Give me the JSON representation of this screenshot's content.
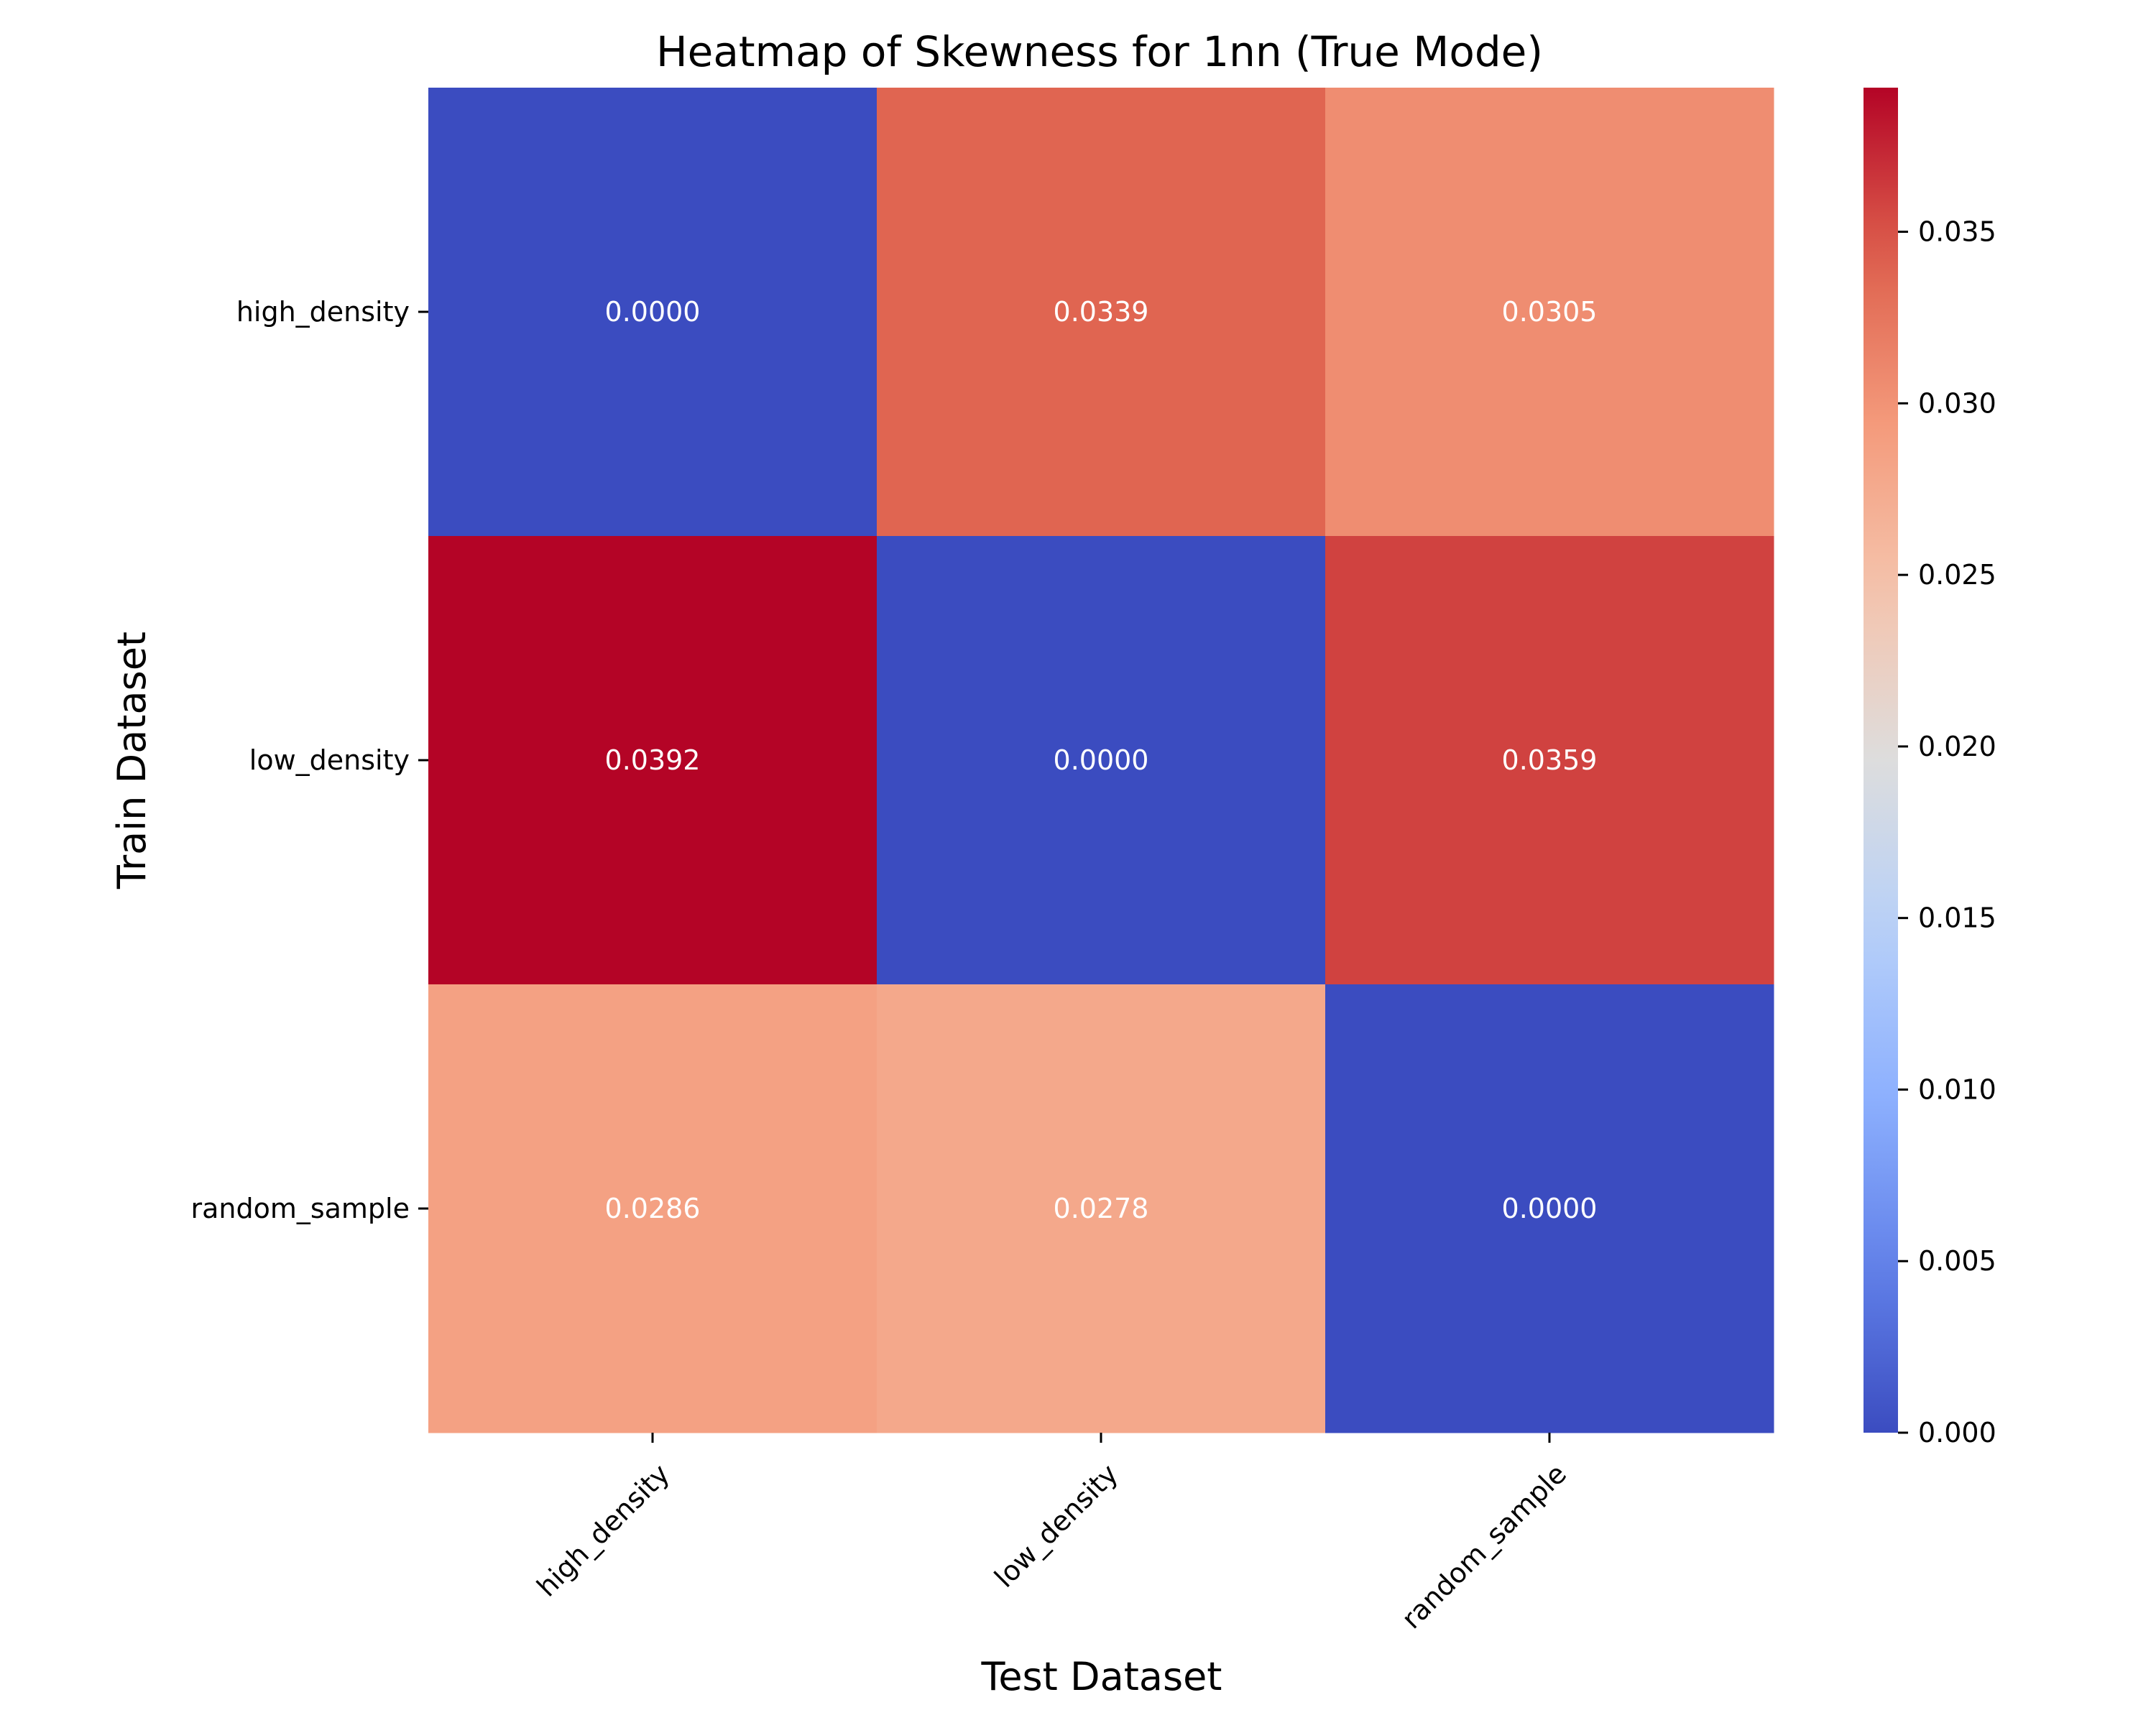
{
  "chart_data": {
    "type": "heatmap",
    "title": "Heatmap of Skewness for 1nn (True Mode)",
    "xlabel": "Test Dataset",
    "ylabel": "Train Dataset",
    "x_categories": [
      "high_density",
      "low_density",
      "random_sample"
    ],
    "y_categories": [
      "high_density",
      "low_density",
      "random_sample"
    ],
    "values": [
      [
        0.0,
        0.0339,
        0.0305
      ],
      [
        0.0392,
        0.0,
        0.0359
      ],
      [
        0.0286,
        0.0278,
        0.0
      ]
    ],
    "cell_labels": [
      [
        "0.0000",
        "0.0339",
        "0.0305"
      ],
      [
        "0.0392",
        "0.0000",
        "0.0359"
      ],
      [
        "0.0286",
        "0.0278",
        "0.0000"
      ]
    ],
    "colormap": "coolwarm",
    "colorbar": {
      "range": [
        0,
        0.0392
      ],
      "ticks": [
        0.0,
        0.005,
        0.01,
        0.015,
        0.02,
        0.025,
        0.03,
        0.035
      ],
      "tick_labels": [
        "0.000",
        "0.005",
        "0.010",
        "0.015",
        "0.020",
        "0.025",
        "0.030",
        "0.035"
      ]
    },
    "x_tick_rotation": "45 degrees"
  }
}
